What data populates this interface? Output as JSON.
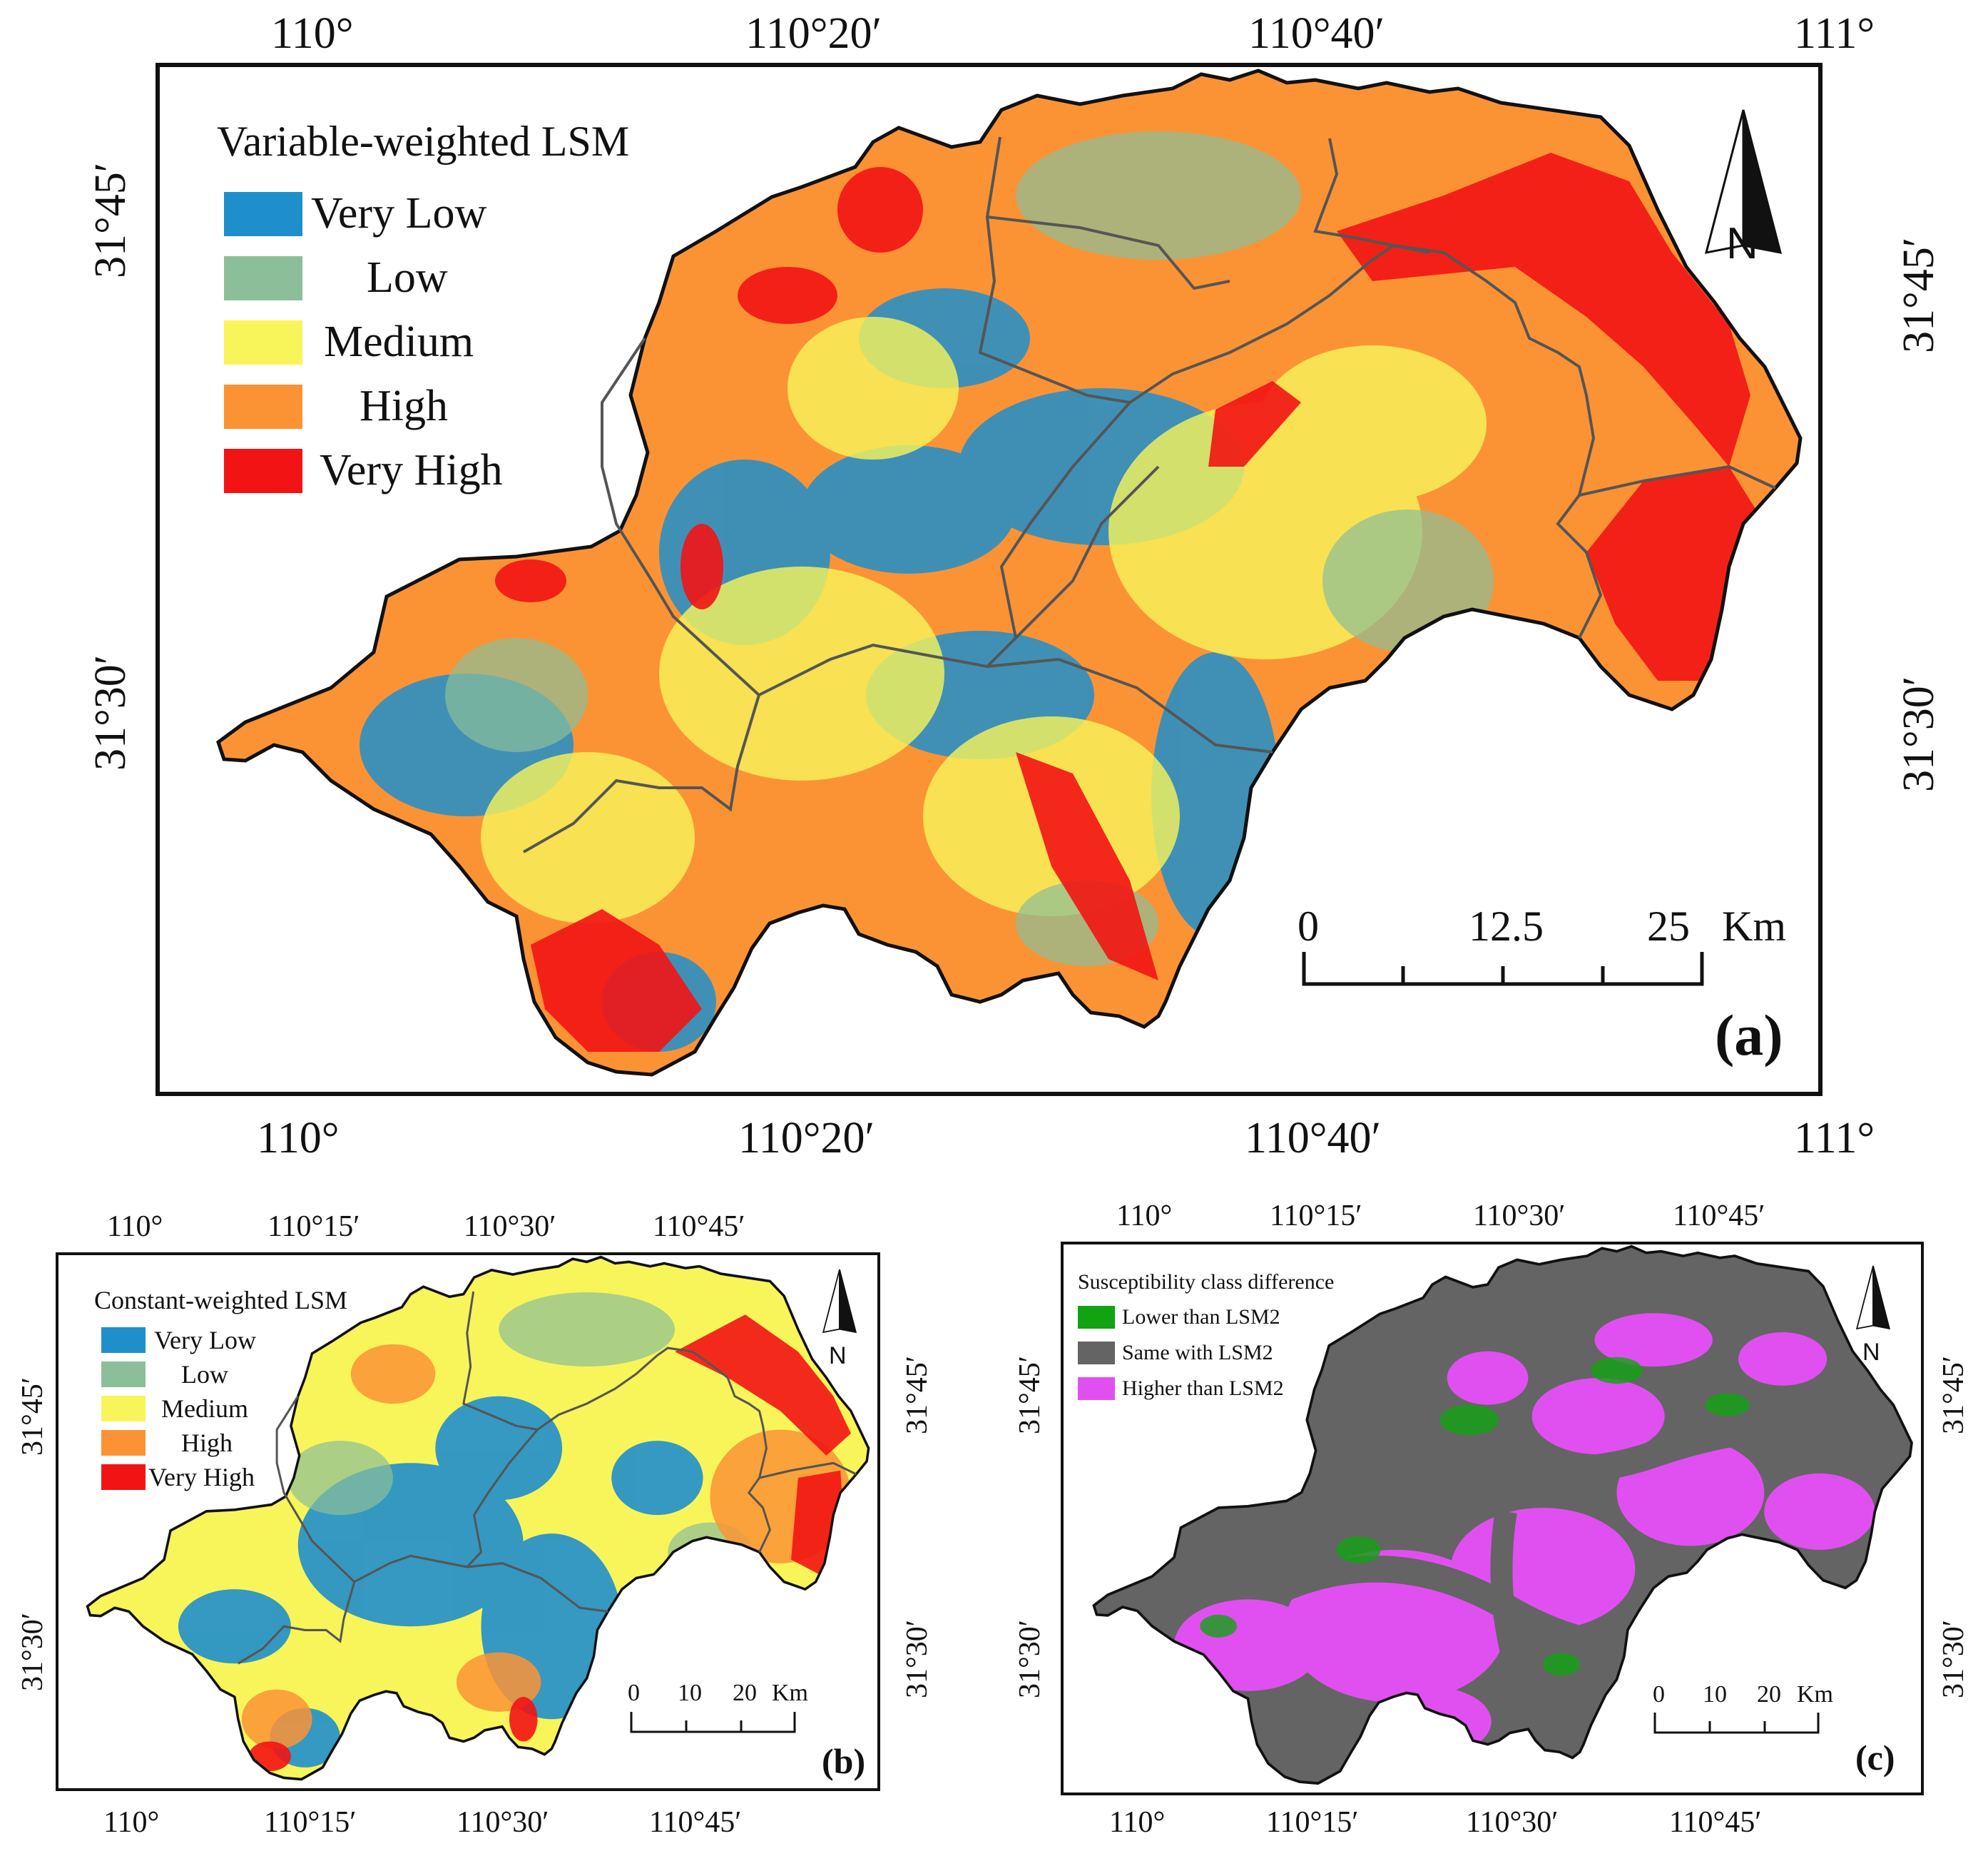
{
  "colors": {
    "very_low": "#1f8fcc",
    "low": "#8cbf99",
    "medium": "#f8f55a",
    "high": "#fb9335",
    "very_high": "#f21414",
    "diff_lower": "#11a311",
    "diff_same": "#646464",
    "diff_higher": "#e050f0",
    "boundary": "#555555"
  },
  "panel_a": {
    "label": "(a)",
    "legend_title": "Variable-weighted LSM",
    "legend": [
      "Very Low",
      "Low",
      "Medium",
      "High",
      "Very High"
    ],
    "top_ticks": [
      "110°",
      "110°20′",
      "110°40′",
      "111°"
    ],
    "bottom_ticks": [
      "110°",
      "110°20′",
      "110°40′",
      "111°"
    ],
    "left_ticks": [
      "31°45′",
      "31°30′"
    ],
    "right_ticks": [
      "31°45′",
      "31°30′"
    ],
    "scale_labels": [
      "0",
      "12.5",
      "25",
      "Km"
    ],
    "north": "N"
  },
  "panel_b": {
    "label": "(b)",
    "legend_title": "Constant-weighted LSM",
    "legend": [
      "Very Low",
      "Low",
      "Medium",
      "High",
      "Very High"
    ],
    "top_ticks": [
      "110°",
      "110°15′",
      "110°30′",
      "110°45′"
    ],
    "bottom_ticks": [
      "110°",
      "110°15′",
      "110°30′",
      "110°45′"
    ],
    "left_ticks": [
      "31°45′",
      "31°30′"
    ],
    "right_ticks": [
      "31°45′",
      "31°30′"
    ],
    "scale_labels": [
      "0",
      "10",
      "20",
      "Km"
    ],
    "north": "N"
  },
  "panel_c": {
    "label": "(c)",
    "legend_title": "Susceptibility class difference",
    "legend": [
      "Lower than LSM2",
      "Same with LSM2",
      "Higher than LSM2"
    ],
    "top_ticks": [
      "110°",
      "110°15′",
      "110°30′",
      "110°45′"
    ],
    "bottom_ticks": [
      "110°",
      "110°15′",
      "110°30′",
      "110°45′"
    ],
    "left_ticks": [
      "31°45′",
      "31°30′"
    ],
    "right_ticks": [
      "31°45′",
      "31°30′"
    ],
    "scale_labels": [
      "0",
      "10",
      "20",
      "Km"
    ],
    "north": "N"
  }
}
